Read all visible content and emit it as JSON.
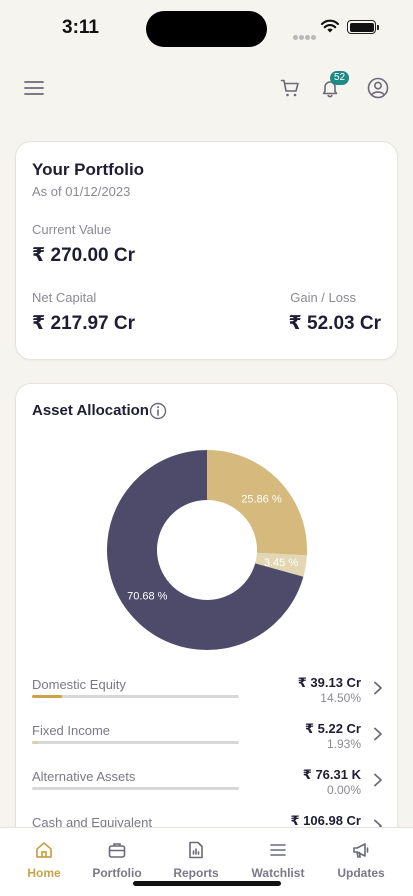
{
  "status": {
    "time": "3:11"
  },
  "header": {
    "notification_count": "52"
  },
  "portfolio": {
    "title": "Your Portfolio",
    "as_of": "As of 01/12/2023",
    "current_value_label": "Current Value",
    "current_value": "₹ 270.00 Cr",
    "net_capital_label": "Net Capital",
    "net_capital": "₹ 217.97 Cr",
    "gain_loss_label": "Gain / Loss",
    "gain_loss": "₹ 52.03 Cr"
  },
  "allocation": {
    "title": "Asset Allocation",
    "assets": [
      {
        "name": "Domestic Equity",
        "amount": "₹ 39.13 Cr",
        "percent": "14.50%",
        "share": 0.145
      },
      {
        "name": "Fixed Income",
        "amount": "₹ 5.22 Cr",
        "percent": "1.93%",
        "share": 0.0193
      },
      {
        "name": "Alternative Assets",
        "amount": "₹ 76.31 K",
        "percent": "0.00%",
        "share": 0.0
      },
      {
        "name": "Cash and Equivalent",
        "amount": "₹ 106.98 Cr",
        "percent": "",
        "share": 0.0
      }
    ]
  },
  "chart_data": {
    "type": "pie",
    "variant": "donut",
    "slices": [
      {
        "label": "25.86 %",
        "value": 25.86,
        "color": "#d6b97c"
      },
      {
        "label": "3.45 %",
        "value": 3.45,
        "color": "#e3d6b3"
      },
      {
        "label": "70.68 %",
        "value": 70.68,
        "color": "#4e4b6a"
      }
    ]
  },
  "tabs": [
    {
      "label": "Home",
      "icon": "home-icon",
      "active": true
    },
    {
      "label": "Portfolio",
      "icon": "briefcase-icon",
      "active": false
    },
    {
      "label": "Reports",
      "icon": "report-icon",
      "active": false
    },
    {
      "label": "Watchlist",
      "icon": "list-icon",
      "active": false
    },
    {
      "label": "Updates",
      "icon": "megaphone-icon",
      "active": false
    }
  ],
  "colors": {
    "accent": "#c9a24a",
    "badge": "#1e8a84",
    "primary_text": "#1f1d33",
    "fill_equity": "#c9a24a",
    "fill_fixed": "#d9d2a8"
  }
}
